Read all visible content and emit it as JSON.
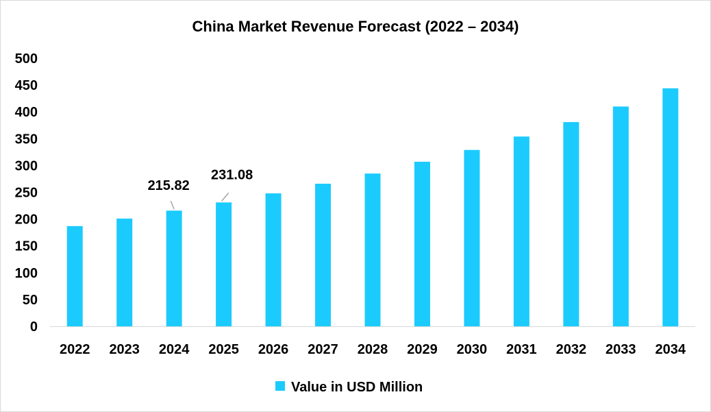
{
  "chart_data": {
    "type": "bar",
    "title": "China Market Revenue Forecast (2022 – 2034)",
    "xlabel": "",
    "ylabel": "",
    "categories": [
      "2022",
      "2023",
      "2024",
      "2025",
      "2026",
      "2027",
      "2028",
      "2029",
      "2030",
      "2031",
      "2032",
      "2033",
      "2034"
    ],
    "series": [
      {
        "name": "Value in USD Million",
        "values": [
          187,
          201,
          215.82,
          231.08,
          248,
          266,
          285,
          307,
          329,
          354,
          381,
          410,
          444
        ]
      }
    ],
    "data_labels": [
      {
        "category": "2024",
        "text": "215.82"
      },
      {
        "category": "2025",
        "text": "231.08"
      }
    ],
    "ylim": [
      0,
      500
    ],
    "yticks": [
      0,
      50,
      100,
      150,
      200,
      250,
      300,
      350,
      400,
      450,
      500
    ],
    "grid": false,
    "legend": "bottom",
    "colors": {
      "bar": "#1ccbfd"
    }
  }
}
